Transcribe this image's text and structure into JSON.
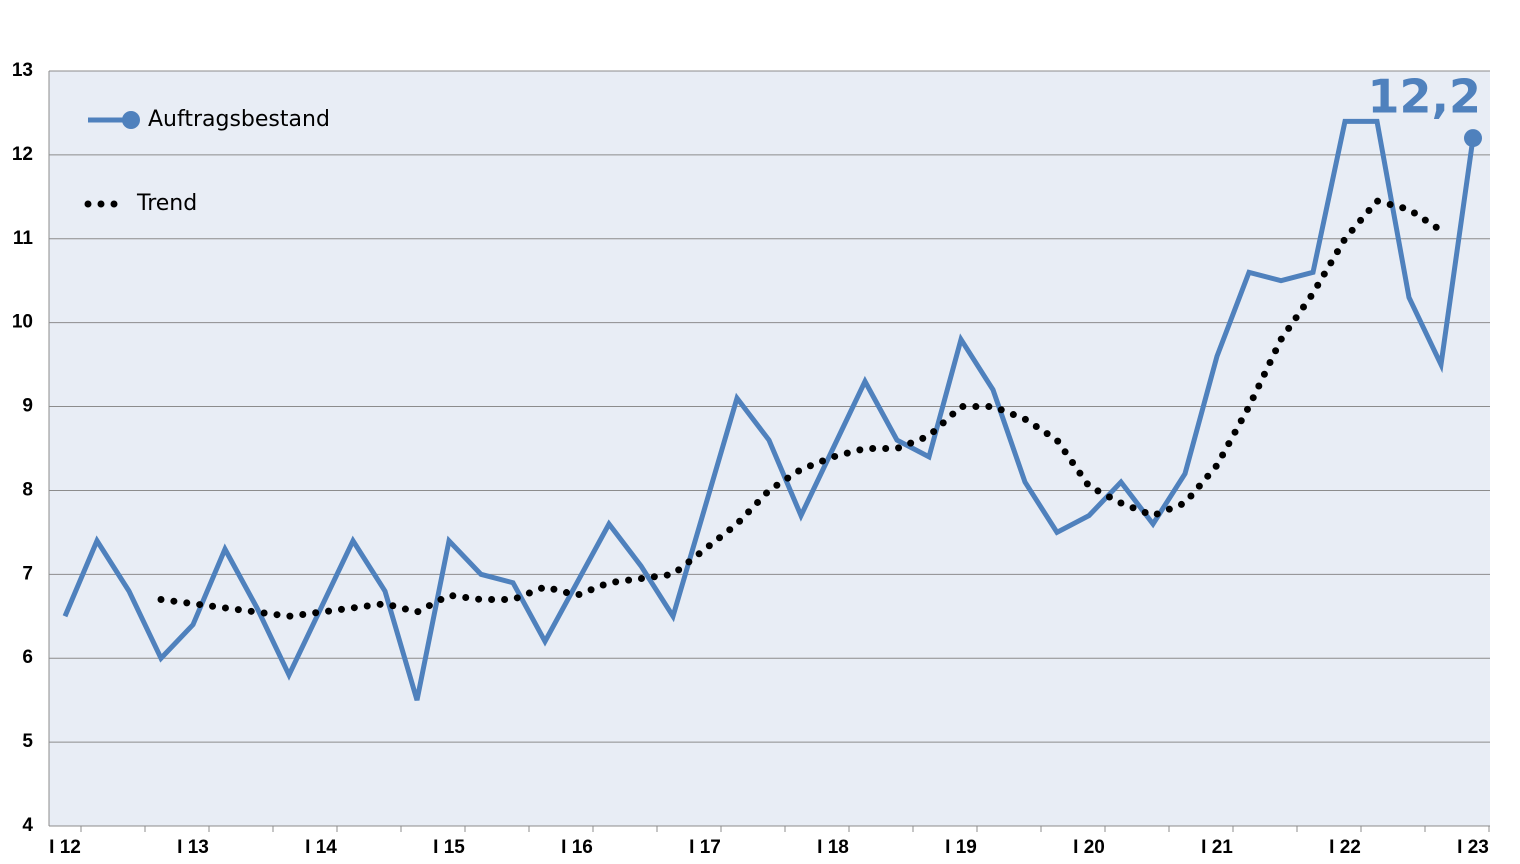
{
  "chart_data": {
    "type": "line",
    "categories": [
      "I 12",
      null,
      null,
      null,
      "I 13",
      null,
      null,
      null,
      "I 14",
      null,
      null,
      null,
      "I 15",
      null,
      null,
      null,
      "I 16",
      null,
      null,
      null,
      "I 17",
      null,
      null,
      null,
      "I 18",
      null,
      null,
      null,
      "I 19",
      null,
      null,
      null,
      "I 20",
      null,
      null,
      null,
      "I 21",
      null,
      null,
      null,
      "I 22",
      null,
      null,
      null,
      "I 23"
    ],
    "series": [
      {
        "name": "Auftragsbestand",
        "color": "#4f81bd",
        "values": [
          6.5,
          7.4,
          6.8,
          6.0,
          6.4,
          7.3,
          6.6,
          5.8,
          6.6,
          7.4,
          6.8,
          5.5,
          7.4,
          7.0,
          6.9,
          6.2,
          6.9,
          7.6,
          7.1,
          6.5,
          7.8,
          9.1,
          8.6,
          7.7,
          8.5,
          9.3,
          8.6,
          8.4,
          9.8,
          9.2,
          8.1,
          7.5,
          7.7,
          8.1,
          7.6,
          8.2,
          9.6,
          10.6,
          10.5,
          10.6,
          12.4,
          12.4,
          10.3,
          9.5,
          12.2
        ],
        "value_labels": [
          null,
          null,
          null,
          null,
          null,
          null,
          null,
          null,
          null,
          null,
          null,
          null,
          null,
          null,
          null,
          null,
          null,
          null,
          null,
          null,
          null,
          null,
          null,
          null,
          null,
          null,
          null,
          null,
          null,
          null,
          null,
          null,
          null,
          null,
          null,
          null,
          null,
          null,
          null,
          null,
          null,
          null,
          null,
          null,
          "12,2"
        ]
      },
      {
        "name": "Trend",
        "color": "#000000",
        "values": [
          null,
          null,
          null,
          6.7,
          6.65,
          6.6,
          6.55,
          6.5,
          6.55,
          6.6,
          6.65,
          6.55,
          6.75,
          6.7,
          6.7,
          6.85,
          6.75,
          6.9,
          6.95,
          7.0,
          7.3,
          7.6,
          8.0,
          8.25,
          8.4,
          8.5,
          8.5,
          8.65,
          9.0,
          9.0,
          8.85,
          8.6,
          8.05,
          7.85,
          7.7,
          7.85,
          8.3,
          9.0,
          9.8,
          10.35,
          11.0,
          11.45,
          11.35,
          11.1,
          null
        ]
      }
    ],
    "ylim": [
      4,
      13
    ],
    "yticks": [
      4,
      5,
      6,
      7,
      8,
      9,
      10,
      11,
      12,
      13
    ],
    "grid": true
  }
}
